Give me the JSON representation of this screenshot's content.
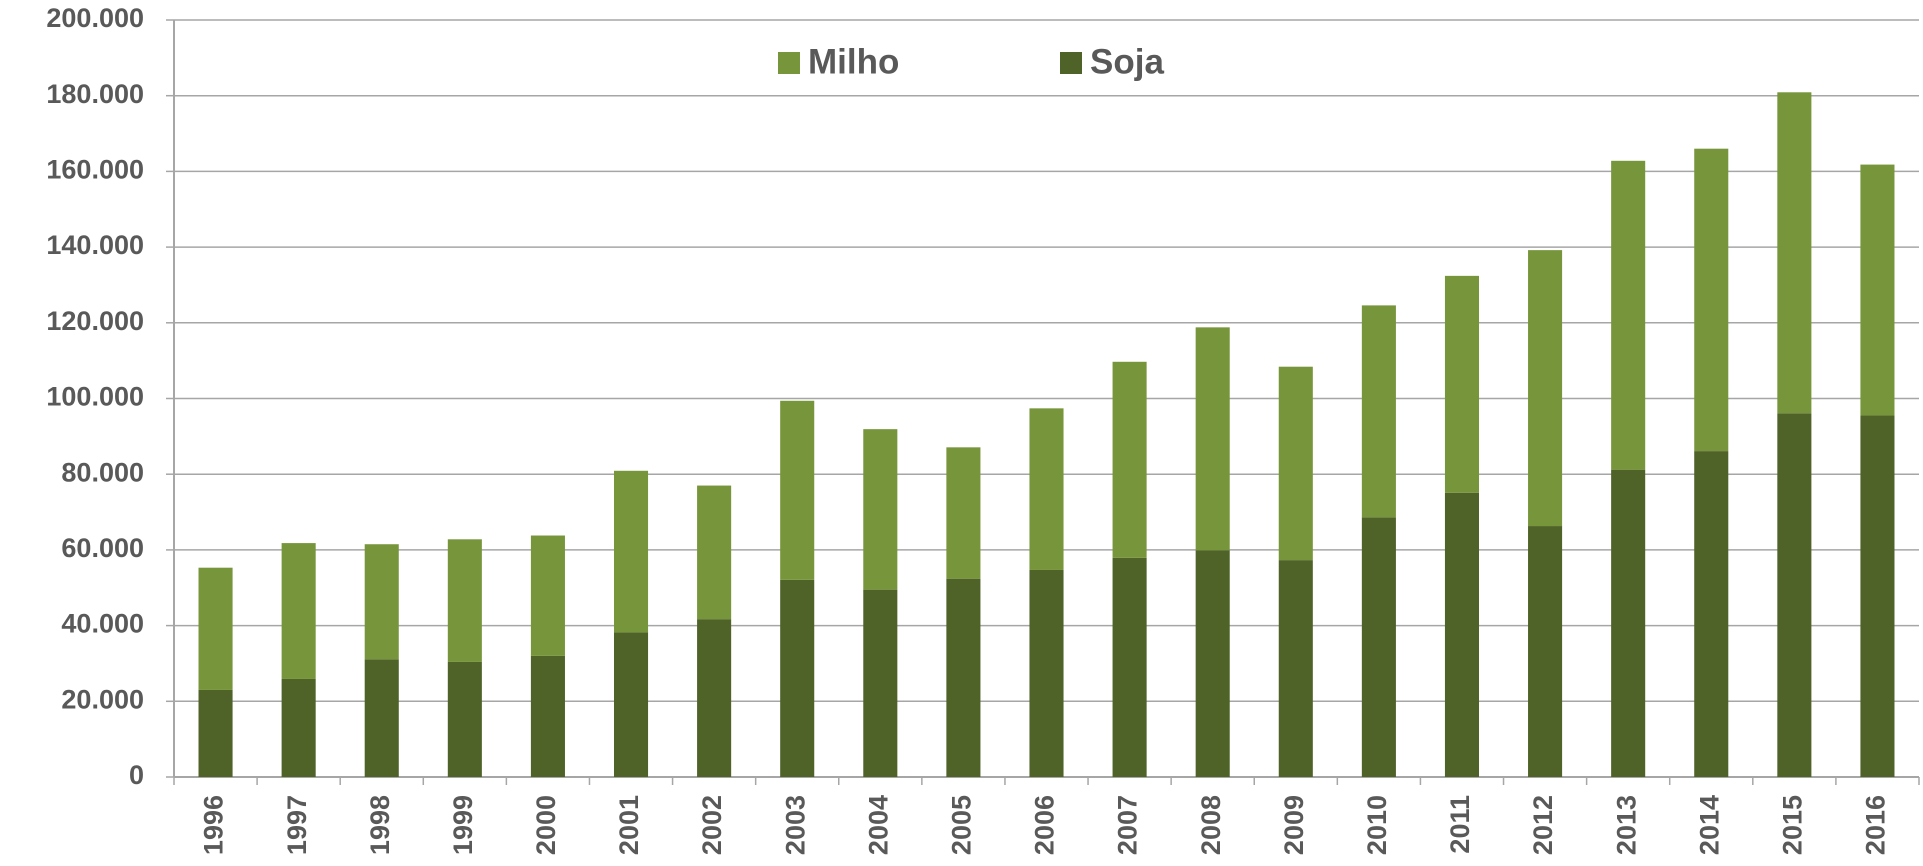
{
  "chart_data": {
    "type": "stacked_bar",
    "categories": [
      "1996",
      "1997",
      "1998",
      "1999",
      "2000",
      "2001",
      "2002",
      "2003",
      "2004",
      "2005",
      "2006",
      "2007",
      "2008",
      "2009",
      "2010",
      "2011",
      "2012",
      "2013",
      "2014",
      "2015",
      "2016"
    ],
    "series": [
      {
        "name": "Milho",
        "color": "#77963b",
        "values": [
          32300,
          35900,
          30400,
          32400,
          31800,
          42700,
          35300,
          47300,
          42400,
          34700,
          42700,
          51800,
          58900,
          51100,
          56000,
          57300,
          72900,
          81600,
          79900,
          84800,
          66300
        ]
      },
      {
        "name": "Soja",
        "color": "#4f6228",
        "values": [
          23000,
          25900,
          31100,
          30400,
          32000,
          38200,
          41700,
          52100,
          49500,
          52400,
          54700,
          57900,
          59900,
          57300,
          68600,
          75100,
          66300,
          81200,
          86100,
          96100,
          95500
        ]
      }
    ],
    "ylim": [
      0,
      200000
    ],
    "yticks": [
      0,
      {
        "value": 20000,
        "label": "20.000"
      },
      {
        "value": 40000,
        "label": "40.000"
      },
      {
        "value": 60000,
        "label": "60.000"
      },
      {
        "value": 80000,
        "label": "80.000"
      },
      {
        "value": 100000,
        "label": "100.000"
      },
      {
        "value": 120000,
        "label": "120.000"
      },
      {
        "value": 140000,
        "label": "140.000"
      },
      {
        "value": 160000,
        "label": "160.000"
      },
      {
        "value": 180000,
        "label": "180.000"
      },
      {
        "value": 200000,
        "label": "200.000"
      }
    ],
    "grid": true,
    "legend": "top"
  }
}
